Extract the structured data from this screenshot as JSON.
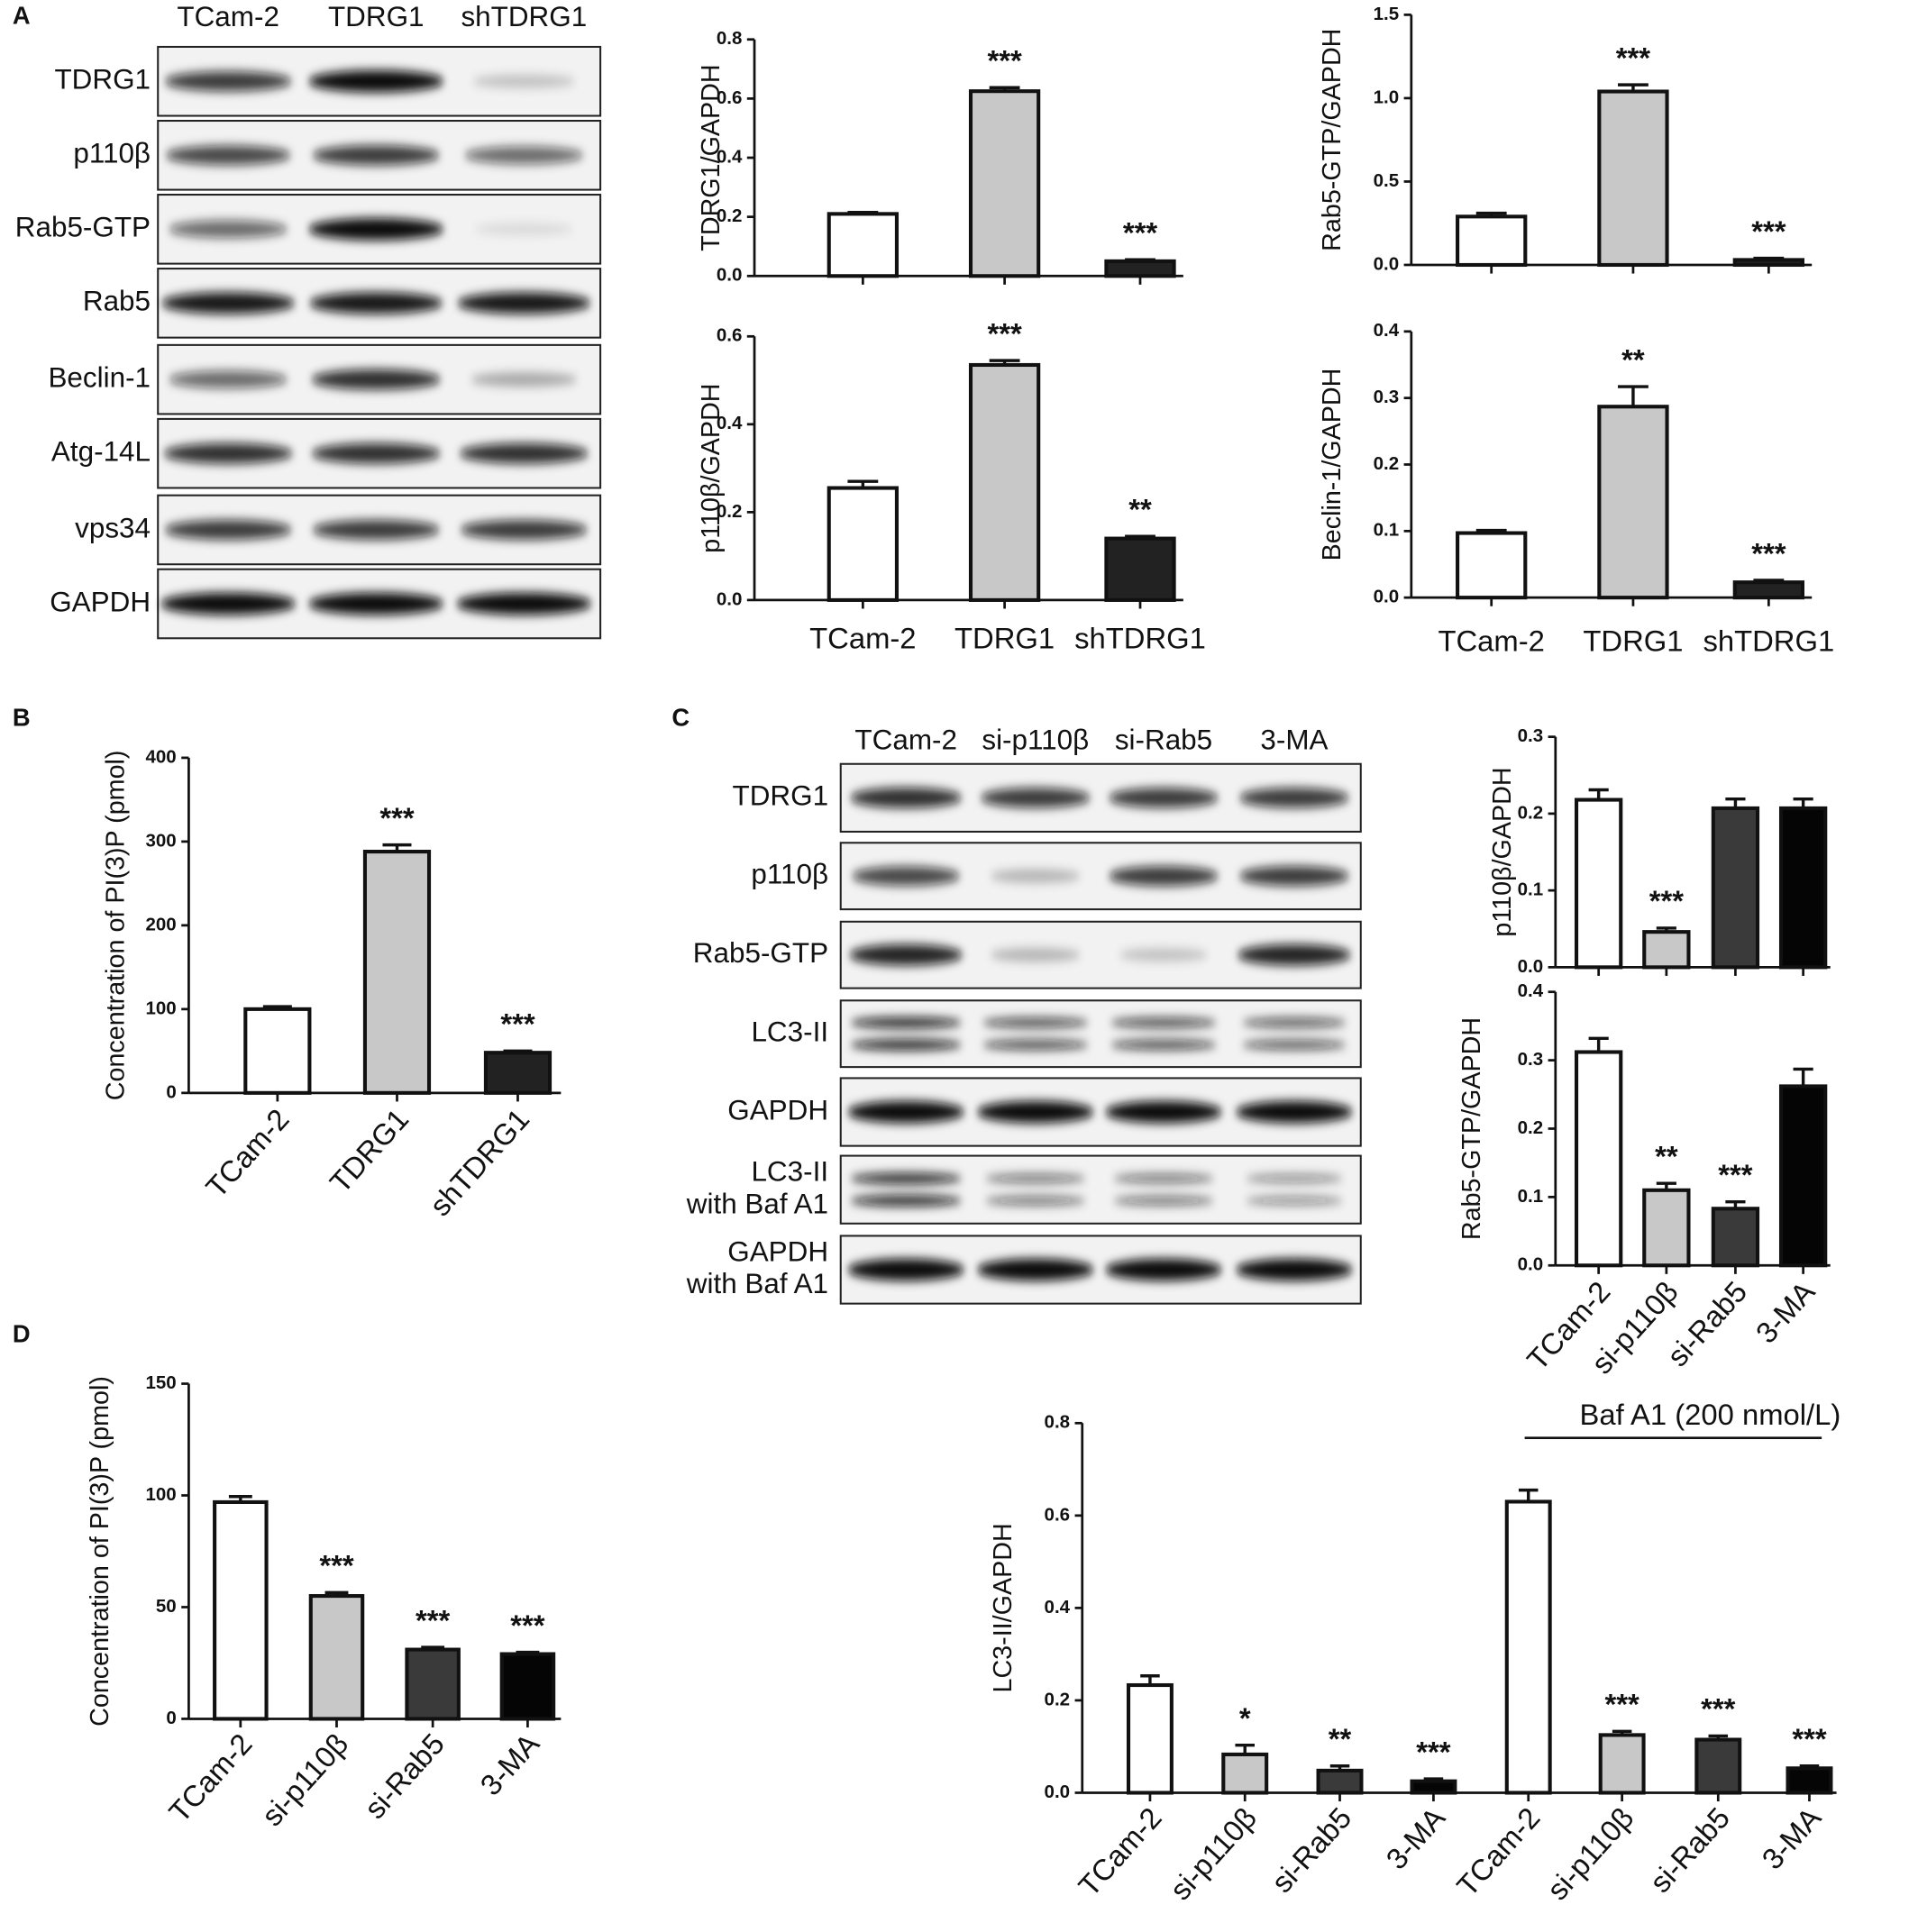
{
  "panels": [
    "A",
    "B",
    "C",
    "D"
  ],
  "blots": [
    {
      "lanes": [
        "TCam-2",
        "TDRG1",
        "shTDRG1"
      ],
      "rows": [
        [
          "TDRG1"
        ],
        [
          "p110β"
        ],
        [
          "Rab5-GTP"
        ],
        [
          "Rab5"
        ],
        [
          "Beclin-1"
        ],
        [
          "Atg-14L"
        ],
        [
          "vps34"
        ],
        [
          "GAPDH"
        ]
      ]
    },
    {
      "lanes": [
        "TCam-2",
        "si-p110β",
        "si-Rab5",
        "3-MA"
      ],
      "rows": [
        [
          "TDRG1"
        ],
        [
          "p110β"
        ],
        [
          "Rab5-GTP"
        ],
        [
          "LC3-II"
        ],
        [
          "GAPDH"
        ],
        [
          "LC3-II",
          "with Baf A1"
        ],
        [
          "GAPDH",
          "with Baf A1"
        ]
      ]
    }
  ],
  "chart_data": [
    {
      "type": "bar",
      "ylabel": "TDRG1/GAPDH",
      "categories": [
        null,
        null,
        null
      ],
      "values": [
        0.21,
        0.625,
        0.05
      ],
      "errors": [
        0.005,
        0.012,
        0.005
      ],
      "annotations": [
        null,
        "***",
        "***"
      ],
      "colors": [
        "#ffffff",
        "#c8c8c8",
        "#222222"
      ],
      "ylim": [
        0,
        0.8
      ],
      "yticks": [
        {
          "value": 0,
          "label": "0.0"
        },
        0.2,
        0.4,
        0.6,
        0.8
      ]
    },
    {
      "type": "bar",
      "ylabel": "Rab5-GTP/GAPDH",
      "categories": [
        null,
        null,
        null
      ],
      "values": [
        0.29,
        1.04,
        0.03
      ],
      "errors": [
        0.02,
        0.04,
        0.01
      ],
      "annotations": [
        null,
        "***",
        "***"
      ],
      "colors": [
        "#ffffff",
        "#c8c8c8",
        "#222222"
      ],
      "ylim": [
        0,
        1.5
      ],
      "yticks": [
        {
          "value": 0,
          "label": "0.0"
        },
        0.5,
        {
          "value": 1,
          "label": "1.0"
        },
        1.5
      ]
    },
    {
      "type": "bar",
      "ylabel": "p110β/GAPDH",
      "categories": [
        "TCam-2",
        "TDRG1",
        "shTDRG1"
      ],
      "values": [
        0.255,
        0.535,
        0.14
      ],
      "errors": [
        0.015,
        0.01,
        0.005
      ],
      "annotations": [
        null,
        "***",
        "**"
      ],
      "colors": [
        "#ffffff",
        "#c8c8c8",
        "#222222"
      ],
      "ylim": [
        0,
        0.6
      ],
      "yticks": [
        {
          "value": 0,
          "label": "0.0"
        },
        0.2,
        0.4,
        0.6
      ]
    },
    {
      "type": "bar",
      "ylabel": "Beclin-1/GAPDH",
      "categories": [
        "TCam-2",
        "TDRG1",
        "shTDRG1"
      ],
      "values": [
        0.097,
        0.287,
        0.023
      ],
      "errors": [
        0.004,
        0.03,
        0.003
      ],
      "annotations": [
        null,
        "**",
        "***"
      ],
      "colors": [
        "#ffffff",
        "#c8c8c8",
        "#222222"
      ],
      "ylim": [
        0,
        0.4
      ],
      "yticks": [
        {
          "value": 0,
          "label": "0.0"
        },
        0.1,
        0.2,
        0.3,
        0.4
      ]
    },
    {
      "type": "bar",
      "ylabel": "Concentration of PI(3)P (pmol)",
      "categories": [
        "TCam-2",
        "TDRG1",
        "shTDRG1"
      ],
      "values": [
        100,
        288,
        48
      ],
      "errors": [
        3,
        8,
        2
      ],
      "annotations": [
        null,
        "***",
        "***"
      ],
      "colors": [
        "#ffffff",
        "#c8c8c8",
        "#222222"
      ],
      "ylim": [
        0,
        400
      ],
      "yticks": [
        0,
        100,
        200,
        300,
        400
      ]
    },
    {
      "type": "bar",
      "ylabel": "p110β/GAPDH",
      "categories": [
        null,
        null,
        null,
        null
      ],
      "values": [
        0.218,
        0.046,
        0.207,
        0.207
      ],
      "errors": [
        0.013,
        0.005,
        0.012,
        0.012
      ],
      "annotations": [
        null,
        "***",
        null,
        null
      ],
      "colors": [
        "#ffffff",
        "#c8c8c8",
        "#3a3a3a",
        "#050505"
      ],
      "ylim": [
        0,
        0.3
      ],
      "yticks": [
        {
          "value": 0,
          "label": "0.0"
        },
        0.1,
        0.2,
        0.3
      ]
    },
    {
      "type": "bar",
      "ylabel": "Rab5-GTP/GAPDH",
      "categories": [
        "TCam-2",
        "si-p110β",
        "si-Rab5",
        "3-MA"
      ],
      "values": [
        0.312,
        0.11,
        0.083,
        0.262
      ],
      "errors": [
        0.02,
        0.01,
        0.01,
        0.025
      ],
      "annotations": [
        null,
        "**",
        "***",
        null
      ],
      "colors": [
        "#ffffff",
        "#c8c8c8",
        "#3a3a3a",
        "#050505"
      ],
      "ylim": [
        0,
        0.4
      ],
      "yticks": [
        {
          "value": 0,
          "label": "0.0"
        },
        0.1,
        0.2,
        0.3,
        0.4
      ]
    },
    {
      "type": "bar",
      "ylabel": "Concentration of PI(3)P (pmol)",
      "categories": [
        "TCam-2",
        "si-p110β",
        "si-Rab5",
        "3-MA"
      ],
      "values": [
        97,
        55,
        31,
        29
      ],
      "errors": [
        2.5,
        1.5,
        1,
        0.8
      ],
      "annotations": [
        null,
        "***",
        "***",
        "***"
      ],
      "colors": [
        "#ffffff",
        "#c8c8c8",
        "#3a3a3a",
        "#050505"
      ],
      "ylim": [
        0,
        150
      ],
      "yticks": [
        0,
        50,
        100,
        150
      ]
    },
    {
      "type": "bar",
      "ylabel": "LC3-II/GAPDH",
      "bracket_label": "Baf A1 (200 nmol/L)",
      "categories": [
        "TCam-2",
        "si-p110β",
        "si-Rab5",
        "3-MA",
        "TCam-2",
        "si-p110β",
        "si-Rab5",
        "3-MA"
      ],
      "values": [
        0.233,
        0.083,
        0.048,
        0.025,
        0.63,
        0.125,
        0.115,
        0.053
      ],
      "errors": [
        0.02,
        0.02,
        0.01,
        0.005,
        0.025,
        0.008,
        0.008,
        0.005
      ],
      "annotations": [
        null,
        "*",
        "**",
        "***",
        null,
        "***",
        "***",
        "***"
      ],
      "colors": [
        "#ffffff",
        "#c8c8c8",
        "#3a3a3a",
        "#050505",
        "#ffffff",
        "#c8c8c8",
        "#3a3a3a",
        "#050505"
      ],
      "ylim": [
        0,
        0.8
      ],
      "yticks": [
        {
          "value": 0,
          "label": "0.0"
        },
        0.2,
        0.4,
        0.6,
        0.8
      ]
    }
  ]
}
